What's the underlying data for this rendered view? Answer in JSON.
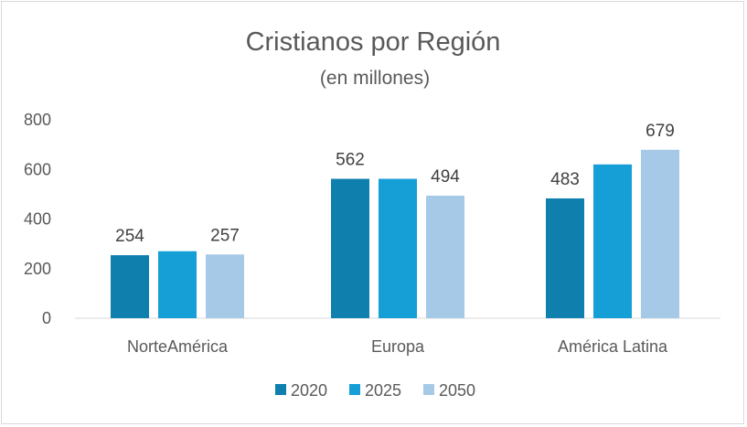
{
  "chart_data": {
    "type": "bar",
    "title": "Cristianos por Región",
    "subtitle": "(en millones)",
    "xlabel": "",
    "ylabel": "",
    "categories": [
      "NorteAmérica",
      "Europa",
      "América Latina"
    ],
    "series": [
      {
        "name": "2020",
        "color": "#0f7fae",
        "values": [
          254,
          562,
          483
        ],
        "labels": [
          "254",
          "562",
          "483"
        ]
      },
      {
        "name": "2025",
        "color": "#159fd6",
        "values": [
          270,
          562,
          620
        ],
        "labels": [
          "",
          "",
          ""
        ]
      },
      {
        "name": "2050",
        "color": "#a7c9e8",
        "values": [
          257,
          494,
          679
        ],
        "labels": [
          "257",
          "494",
          "679"
        ]
      }
    ],
    "ylim": [
      0,
      800
    ],
    "yticks": [
      0,
      200,
      400,
      600,
      800
    ],
    "ytick_labels": [
      "0",
      "200",
      "400",
      "600",
      "800"
    ],
    "grid": false,
    "legend_position": "bottom"
  }
}
